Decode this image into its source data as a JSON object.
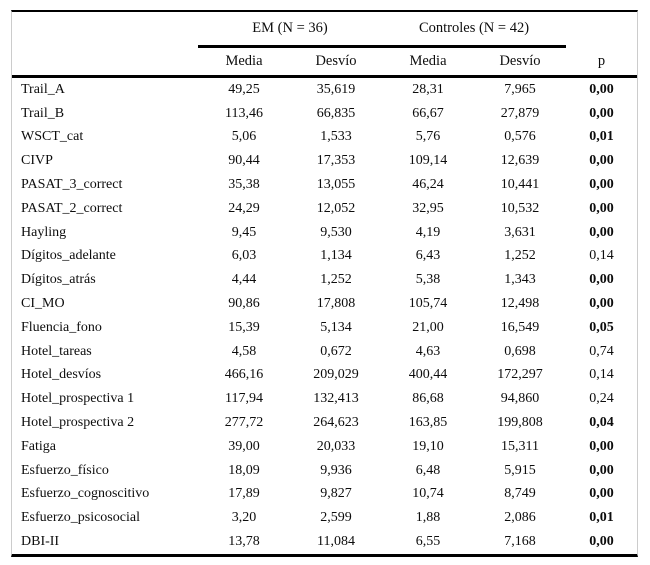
{
  "table": {
    "groups": [
      {
        "label": "EM (N = 36)"
      },
      {
        "label": "Controles (N = 42)"
      }
    ],
    "columns": [
      "Media",
      "Desvío",
      "Media",
      "Desvío",
      "p"
    ],
    "rows": [
      {
        "label": "Trail_A",
        "em_media": "49,25",
        "em_desvio": "35,619",
        "c_media": "28,31",
        "c_desvio": "7,965",
        "p": "0,00",
        "p_bold": true
      },
      {
        "label": "Trail_B",
        "em_media": "113,46",
        "em_desvio": "66,835",
        "c_media": "66,67",
        "c_desvio": "27,879",
        "p": "0,00",
        "p_bold": true
      },
      {
        "label": "WSCT_cat",
        "em_media": "5,06",
        "em_desvio": "1,533",
        "c_media": "5,76",
        "c_desvio": "0,576",
        "p": "0,01",
        "p_bold": true
      },
      {
        "label": "CIVP",
        "em_media": "90,44",
        "em_desvio": "17,353",
        "c_media": "109,14",
        "c_desvio": "12,639",
        "p": "0,00",
        "p_bold": true
      },
      {
        "label": "PASAT_3_correct",
        "em_media": "35,38",
        "em_desvio": "13,055",
        "c_media": "46,24",
        "c_desvio": "10,441",
        "p": "0,00",
        "p_bold": true
      },
      {
        "label": "PASAT_2_correct",
        "em_media": "24,29",
        "em_desvio": "12,052",
        "c_media": "32,95",
        "c_desvio": "10,532",
        "p": "0,00",
        "p_bold": true
      },
      {
        "label": "Hayling",
        "em_media": "9,45",
        "em_desvio": "9,530",
        "c_media": "4,19",
        "c_desvio": "3,631",
        "p": "0,00",
        "p_bold": true
      },
      {
        "label": "Dígitos_adelante",
        "em_media": "6,03",
        "em_desvio": "1,134",
        "c_media": "6,43",
        "c_desvio": "1,252",
        "p": "0,14",
        "p_bold": false
      },
      {
        "label": "Dígitos_atrás",
        "em_media": "4,44",
        "em_desvio": "1,252",
        "c_media": "5,38",
        "c_desvio": "1,343",
        "p": "0,00",
        "p_bold": true
      },
      {
        "label": "CI_MO",
        "em_media": "90,86",
        "em_desvio": "17,808",
        "c_media": "105,74",
        "c_desvio": "12,498",
        "p": "0,00",
        "p_bold": true
      },
      {
        "label": "Fluencia_fono",
        "em_media": "15,39",
        "em_desvio": "5,134",
        "c_media": "21,00",
        "c_desvio": "16,549",
        "p": "0,05",
        "p_bold": true
      },
      {
        "label": "Hotel_tareas",
        "em_media": "4,58",
        "em_desvio": "0,672",
        "c_media": "4,63",
        "c_desvio": "0,698",
        "p": "0,74",
        "p_bold": false
      },
      {
        "label": "Hotel_desvíos",
        "em_media": "466,16",
        "em_desvio": "209,029",
        "c_media": "400,44",
        "c_desvio": "172,297",
        "p": "0,14",
        "p_bold": false
      },
      {
        "label": "Hotel_prospectiva 1",
        "em_media": "117,94",
        "em_desvio": "132,413",
        "c_media": "86,68",
        "c_desvio": "94,860",
        "p": "0,24",
        "p_bold": false
      },
      {
        "label": "Hotel_prospectiva 2",
        "em_media": "277,72",
        "em_desvio": "264,623",
        "c_media": "163,85",
        "c_desvio": "199,808",
        "p": "0,04",
        "p_bold": true
      },
      {
        "label": "Fatiga",
        "em_media": "39,00",
        "em_desvio": "20,033",
        "c_media": "19,10",
        "c_desvio": "15,311",
        "p": "0,00",
        "p_bold": true
      },
      {
        "label": "Esfuerzo_físico",
        "em_media": "18,09",
        "em_desvio": "9,936",
        "c_media": "6,48",
        "c_desvio": "5,915",
        "p": "0,00",
        "p_bold": true
      },
      {
        "label": "Esfuerzo_cognoscitivo",
        "em_media": "17,89",
        "em_desvio": "9,827",
        "c_media": "10,74",
        "c_desvio": "8,749",
        "p": "0,00",
        "p_bold": true
      },
      {
        "label": "Esfuerzo_psicosocial",
        "em_media": "3,20",
        "em_desvio": "2,599",
        "c_media": "1,88",
        "c_desvio": "2,086",
        "p": "0,01",
        "p_bold": true
      },
      {
        "label": "DBI-II",
        "em_media": "13,78",
        "em_desvio": "11,084",
        "c_media": "6,55",
        "c_desvio": "7,168",
        "p": "0,00",
        "p_bold": true
      }
    ]
  },
  "colors": {
    "rule": "#000000",
    "frame": "#cccccc",
    "background": "#ffffff",
    "text": "#0d0d0d"
  }
}
